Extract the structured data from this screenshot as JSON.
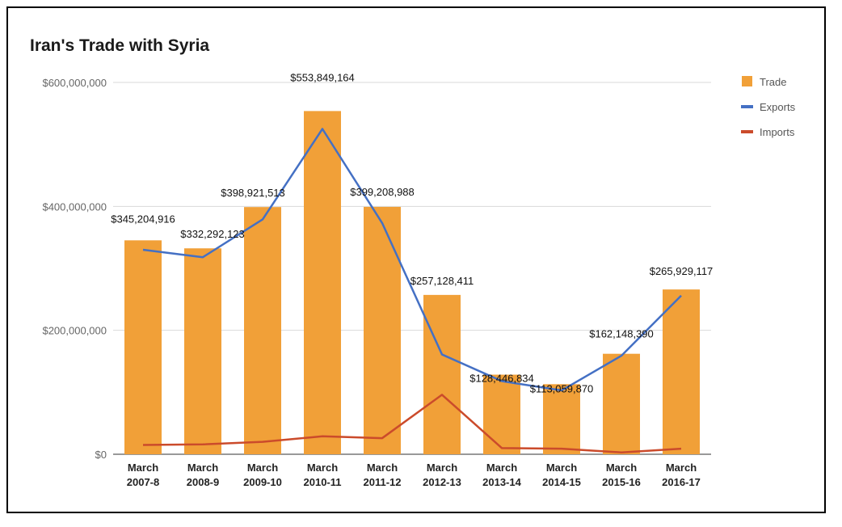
{
  "chart_data": {
    "type": "bar",
    "title": "Iran's Trade with Syria",
    "categories": [
      [
        "March",
        "2007-8"
      ],
      [
        "March",
        "2008-9"
      ],
      [
        "March",
        "2009-10"
      ],
      [
        "March",
        "2010-11"
      ],
      [
        "March",
        "2011-12"
      ],
      [
        "March",
        "2012-13"
      ],
      [
        "March",
        "2013-14"
      ],
      [
        "March",
        "2014-15"
      ],
      [
        "March",
        "2015-16"
      ],
      [
        "March",
        "2016-17"
      ]
    ],
    "series": [
      {
        "name": "Trade",
        "kind": "bar",
        "color": "#F1A038",
        "values": [
          345204916,
          332292123,
          398921513,
          553849164,
          399208988,
          257128411,
          128446834,
          113059870,
          162148390,
          265929117
        ],
        "labels": [
          "$345,204,916",
          "$332,292,123",
          "$398,921,513",
          "$553,849,164",
          "$399,208,988",
          "$257,128,411",
          "$128,446,834",
          "$113,059,870",
          "$162,148,390",
          "$265,929,117"
        ]
      },
      {
        "name": "Exports",
        "kind": "line",
        "color": "#4470C4",
        "values": [
          330000000,
          318000000,
          379000000,
          525000000,
          373000000,
          161000000,
          118000000,
          103000000,
          159000000,
          256000000
        ]
      },
      {
        "name": "Imports",
        "kind": "line",
        "color": "#CB4B2B",
        "values": [
          15000000,
          16000000,
          20000000,
          29000000,
          26000000,
          96000000,
          10000000,
          9000000,
          3000000,
          9000000
        ]
      }
    ],
    "ylim": [
      0,
      600000000
    ],
    "yticks": [
      0,
      200000000,
      400000000,
      600000000
    ],
    "ytick_labels": [
      "$0",
      "$200,000,000",
      "$400,000,000",
      "$600,000,000"
    ],
    "grid": true,
    "legend_position": "right"
  }
}
